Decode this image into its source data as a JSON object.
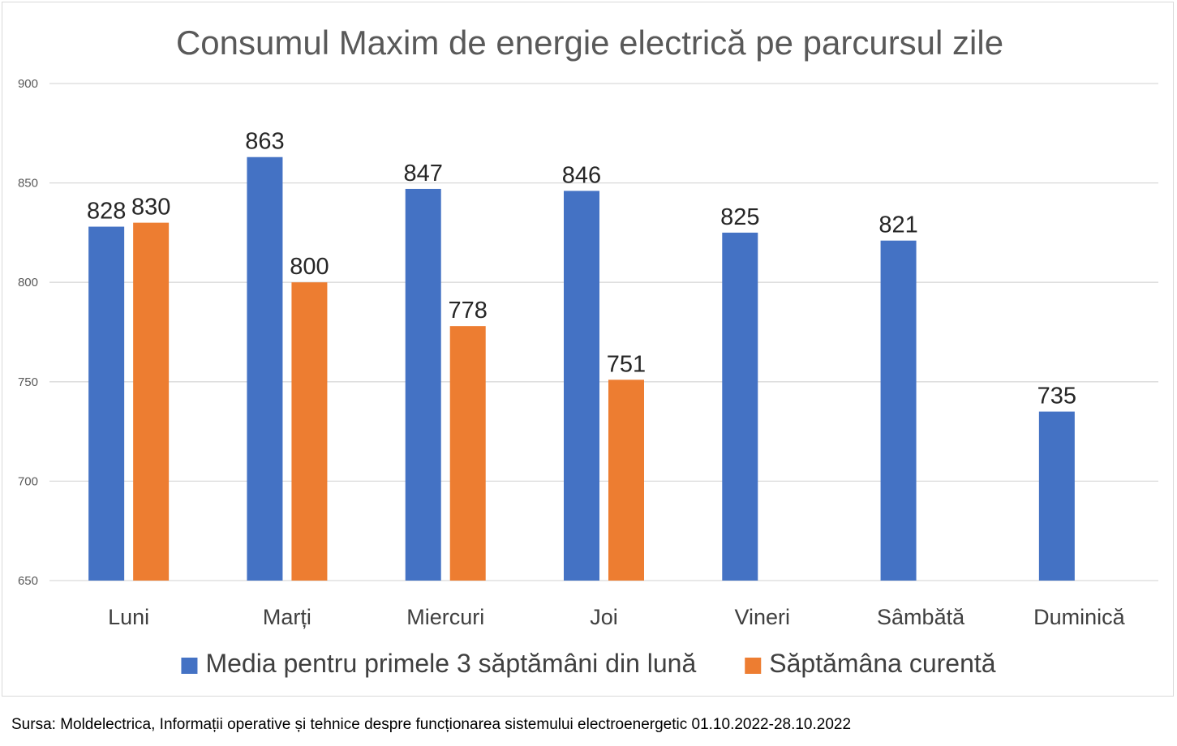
{
  "chart_data": {
    "type": "bar",
    "title": "Consumul Maxim de energie electrică pe parcursul zile",
    "categories": [
      "Luni",
      "Marți",
      "Miercuri",
      "Joi",
      "Vineri",
      "Sâmbătă",
      "Duminică"
    ],
    "series": [
      {
        "name": "Media pentru primele 3 săptămâni din lună",
        "color": "#4472C4",
        "values": [
          828,
          863,
          847,
          846,
          825,
          821,
          735
        ]
      },
      {
        "name": "Săptămâna curentă",
        "color": "#ED7D31",
        "values": [
          830,
          800,
          778,
          751,
          null,
          null,
          null
        ]
      }
    ],
    "ylim": [
      650,
      900
    ],
    "yticks": [
      650,
      700,
      750,
      800,
      850,
      900
    ],
    "grid": true,
    "legend_position": "bottom",
    "data_labels": true
  },
  "source": "Sursa: Moldelectrica, Informații operative și tehnice despre funcționarea sistemului electroenergetic 01.10.2022-28.10.2022"
}
